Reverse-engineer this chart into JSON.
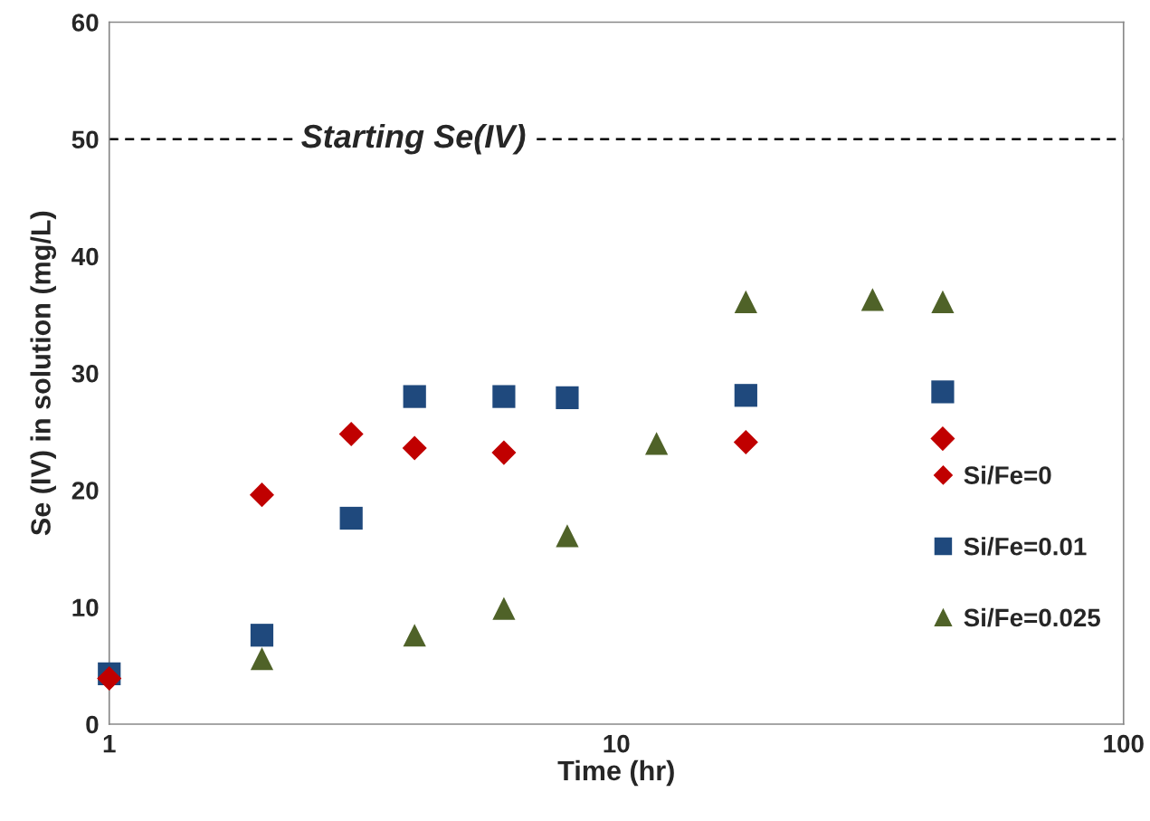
{
  "chart_data": {
    "type": "scatter",
    "xlabel": "Time (hr)",
    "ylabel": "Se (IV) in solution (mg/L)",
    "log": "x",
    "xlim": [
      1,
      100
    ],
    "xticks": [
      1,
      10,
      100
    ],
    "ylim": [
      0,
      60
    ],
    "yticks": [
      0,
      10,
      20,
      30,
      40,
      50,
      60
    ],
    "grid": false,
    "legend": "right",
    "series": [
      {
        "name": "Si/Fe=0",
        "color": "#c00000",
        "marker": "diamond",
        "x": [
          1,
          2,
          3,
          4,
          6,
          18,
          44
        ],
        "values": [
          3.9,
          19.6,
          24.8,
          23.6,
          23.2,
          24.1,
          24.4
        ]
      },
      {
        "name": "Si/Fe=0.01",
        "color": "#1f497d",
        "marker": "square",
        "x": [
          1,
          2,
          3,
          4,
          6,
          8,
          18,
          44
        ],
        "values": [
          4.3,
          7.6,
          17.6,
          28.0,
          28.0,
          27.9,
          28.1,
          28.4
        ]
      },
      {
        "name": "Si/Fe=0.025",
        "color": "#4f6228",
        "marker": "triangle",
        "x": [
          2,
          4,
          6,
          8,
          12,
          18,
          32,
          44
        ],
        "values": [
          5.6,
          7.6,
          9.9,
          16.1,
          24.0,
          36.1,
          36.3,
          36.1
        ]
      }
    ],
    "ref_lines": [
      {
        "axis": "y",
        "value": 50,
        "label": "Starting Se(IV)",
        "color": "#000000",
        "line_style": "dashed"
      }
    ]
  }
}
